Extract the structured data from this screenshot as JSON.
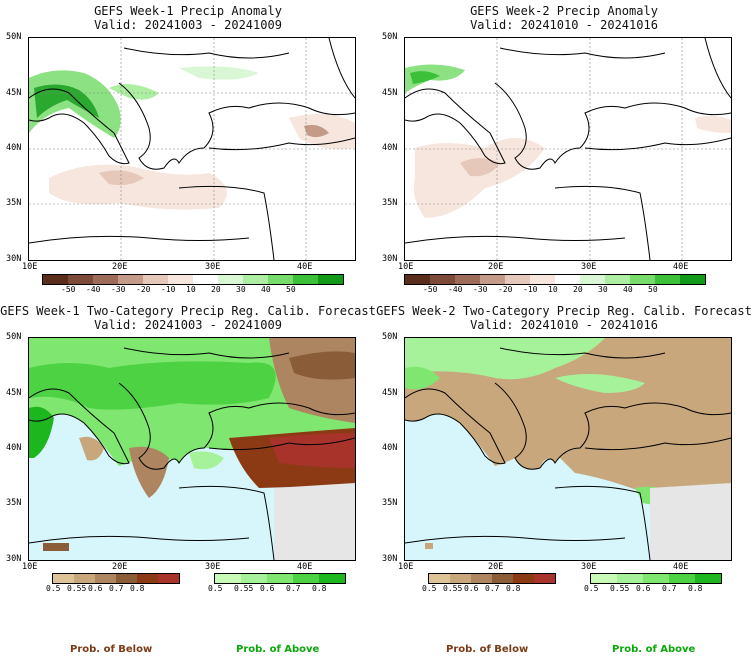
{
  "colors": {
    "below_label": "#7a3b16",
    "above_label": "#0aa80a",
    "sea": "#d6f6fb",
    "land_gray": "#e6e6e6",
    "wet": "#58c858",
    "dry": "#c9a07d"
  },
  "panels": [
    {
      "title": "GEFS Week-1 Precip Anomaly",
      "valid": "Valid: 20241003 - 20241009"
    },
    {
      "title": "GEFS Week-2 Precip Anomaly",
      "valid": "Valid: 20241010 - 20241016"
    },
    {
      "title": "GEFS Week-1 Two-Category Precip Reg. Calib. Forecast",
      "valid": "Valid: 20241003 - 20241009"
    },
    {
      "title": "GEFS Week-2 Two-Category Precip Reg. Calib. Forecast",
      "valid": "Valid: 20241010 - 20241016"
    }
  ],
  "lat_labels": [
    "50N",
    "45N",
    "40N",
    "35N",
    "30N"
  ],
  "lon_labels": [
    "10E",
    "20E",
    "30E",
    "40E"
  ],
  "anomaly_colorbar": {
    "labels": [
      "-50",
      "-40",
      "-30",
      "-20",
      "-10",
      "10",
      "20",
      "30",
      "40",
      "50"
    ],
    "colors": [
      "#5a2d1c",
      "#7c4a36",
      "#9c6c58",
      "#c49a89",
      "#e5c8ba",
      "#f6e6dd",
      "#ffffff",
      "#d9f7d4",
      "#aeeea2",
      "#78dc6c",
      "#3cc03a",
      "#119a1a"
    ]
  },
  "below_colorbar": {
    "labels": [
      "0.5",
      "0.55",
      "0.6",
      "0.7",
      "0.8"
    ],
    "colors": [
      "#dcc498",
      "#c9a77c",
      "#ad8661",
      "#8a5c37",
      "#8c3a14",
      "#a8332b"
    ]
  },
  "above_colorbar": {
    "labels": [
      "0.5",
      "0.55",
      "0.6",
      "0.7",
      "0.8"
    ],
    "colors": [
      "#c8fbb8",
      "#a6f29a",
      "#7fe670",
      "#4cd242",
      "#1eb61e"
    ]
  },
  "prob_labels": {
    "below": "Prob. of Below",
    "above": "Prob. of Above"
  }
}
